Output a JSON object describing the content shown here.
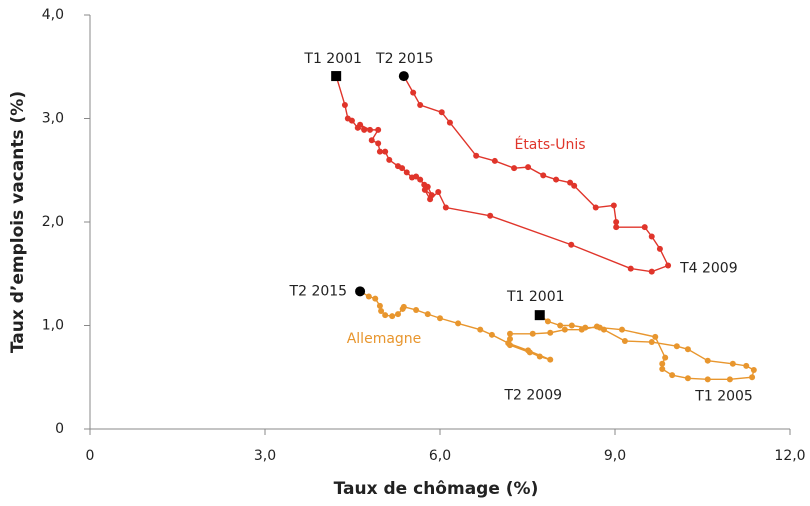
{
  "chart_data": {
    "type": "line",
    "xlabel": "Taux de chômage (%)",
    "ylabel": "Taux d’emplois vacants (%)",
    "xlim": [
      0,
      12
    ],
    "ylim": [
      0,
      4
    ],
    "xticks": [
      0,
      {
        "value": 3,
        "label": "3,0"
      },
      {
        "value": 6,
        "label": "6,0"
      },
      {
        "value": 9,
        "label": "9,0"
      },
      {
        "value": 12,
        "label": "12,0"
      }
    ],
    "yticks": [
      0,
      {
        "value": 1,
        "label": "1,0"
      },
      {
        "value": 2,
        "label": "2,0"
      },
      {
        "value": 3,
        "label": "3,0"
      },
      {
        "value": 4,
        "label": "4,0"
      }
    ],
    "grid": false,
    "series": [
      {
        "name": "États-Unis",
        "color": "#e0352b",
        "x": [
          4.22,
          4.37,
          4.42,
          4.49,
          4.59,
          4.7,
          4.63,
          4.8,
          4.94,
          4.83,
          4.94,
          4.97,
          5.06,
          5.13,
          5.28,
          5.35,
          5.43,
          5.52,
          5.59,
          5.66,
          5.73,
          5.79,
          5.86,
          5.74,
          5.83,
          5.97,
          6.1,
          6.86,
          8.25,
          9.27,
          9.63,
          9.91,
          9.77,
          9.63,
          9.51,
          9.02,
          9.02,
          8.98,
          8.67,
          8.3,
          8.23,
          7.99,
          7.77,
          7.51,
          7.27,
          6.94,
          6.62,
          6.17,
          6.03,
          5.66,
          5.54,
          5.38
        ],
        "values": [
          3.41,
          3.13,
          3.0,
          2.98,
          2.91,
          2.89,
          2.94,
          2.89,
          2.89,
          2.79,
          2.76,
          2.68,
          2.68,
          2.6,
          2.54,
          2.52,
          2.48,
          2.43,
          2.44,
          2.41,
          2.36,
          2.34,
          2.26,
          2.31,
          2.22,
          2.29,
          2.14,
          2.06,
          1.78,
          1.55,
          1.52,
          1.58,
          1.74,
          1.86,
          1.95,
          1.95,
          2.0,
          2.16,
          2.14,
          2.35,
          2.38,
          2.41,
          2.45,
          2.53,
          2.52,
          2.59,
          2.64,
          2.96,
          3.06,
          3.13,
          3.25,
          3.41
        ],
        "annotations": [
          "T1 2001",
          "T2 2015",
          "T4 2009"
        ]
      },
      {
        "name": "Allemagne",
        "color": "#e8962e",
        "x": [
          7.71,
          7.85,
          8.06,
          8.26,
          8.49,
          8.74,
          9.12,
          9.69,
          9.86,
          9.81,
          9.81,
          9.98,
          10.25,
          10.59,
          10.97,
          11.35,
          11.38,
          11.25,
          11.02,
          10.59,
          10.25,
          10.06,
          9.63,
          9.17,
          8.81,
          8.69,
          8.43,
          8.14,
          7.89,
          7.59,
          7.2,
          7.2,
          7.2,
          7.54,
          7.71,
          7.89,
          7.51,
          7.17,
          6.89,
          6.69,
          6.31,
          6.0,
          5.79,
          5.59,
          5.38,
          5.36,
          5.28,
          5.18,
          5.06,
          4.99,
          4.97,
          4.89,
          4.78,
          4.63
        ],
        "values": [
          1.1,
          1.04,
          1.0,
          1.0,
          0.98,
          0.98,
          0.96,
          0.89,
          0.69,
          0.63,
          0.58,
          0.52,
          0.49,
          0.48,
          0.48,
          0.5,
          0.57,
          0.61,
          0.63,
          0.66,
          0.77,
          0.8,
          0.84,
          0.85,
          0.96,
          0.99,
          0.96,
          0.96,
          0.93,
          0.92,
          0.92,
          0.87,
          0.81,
          0.74,
          0.7,
          0.67,
          0.76,
          0.83,
          0.91,
          0.96,
          1.02,
          1.07,
          1.11,
          1.15,
          1.18,
          1.16,
          1.11,
          1.09,
          1.1,
          1.14,
          1.19,
          1.26,
          1.28,
          1.33
        ],
        "annotations": [
          "T1 2001",
          "T2 2015",
          "T2 2009",
          "T1 2005"
        ]
      }
    ]
  }
}
